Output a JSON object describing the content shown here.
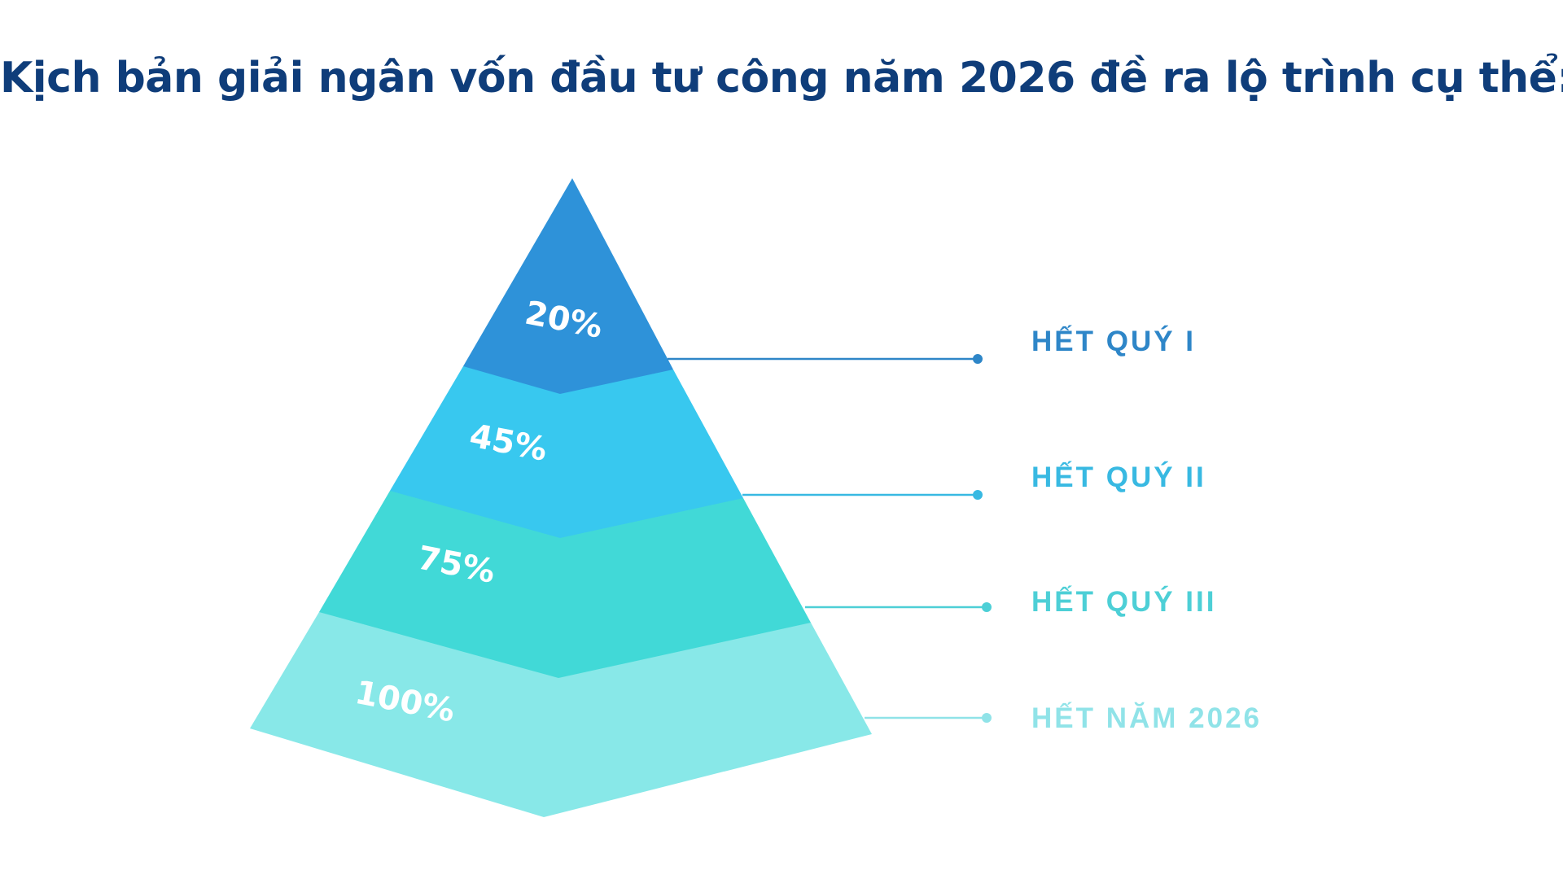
{
  "title": "Kịch bản giải ngân vốn đầu tư công năm 2026 đề ra lộ trình cụ thể:",
  "levels": [
    {
      "percent": "20%",
      "stage": "HẾT QUÝ I",
      "fill_color": "#2e92d9",
      "label_color": "#2e86c8"
    },
    {
      "percent": "45%",
      "stage": "HẾT QUÝ II",
      "fill_color": "#38c8ef",
      "label_color": "#38b9e2"
    },
    {
      "percent": "75%",
      "stage": "HẾT QUÝ III",
      "fill_color": "#41d9d7",
      "label_color": "#4dcfd6"
    },
    {
      "percent": "100%",
      "stage": "HẾT NĂM 2026",
      "fill_color": "#88e8e8",
      "label_color": "#90e3e8"
    }
  ]
}
